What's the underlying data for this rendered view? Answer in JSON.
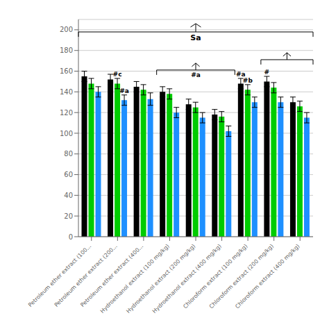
{
  "chart_data": {
    "type": "bar",
    "categories": [
      "Petroleum ether extract (100...",
      "Petroleum ether extract (200...",
      "Petroleum ether extract (400...",
      "Hydroethanol extract (100 mg/kg)",
      "Hydroethanol extract (200 mg/kg)",
      "Hydroethanol extract (400 mg/kg)",
      "Chloroform extract (100 mg/kg)",
      "Chloroform extract (200 mg/kg)",
      "Chloroform extract (400 mg/kg)"
    ],
    "series": [
      {
        "color": "#000000",
        "values": [
          155,
          152,
          145,
          140,
          128,
          118,
          148,
          150,
          130
        ],
        "errors": [
          5,
          5,
          5,
          5,
          5,
          5,
          5,
          5,
          5
        ],
        "annotations": [
          null,
          null,
          null,
          null,
          null,
          null,
          "#a",
          "#",
          null
        ]
      },
      {
        "color": "#00cc00",
        "values": [
          148,
          148,
          142,
          138,
          125,
          116,
          142,
          144,
          126
        ],
        "errors": [
          5,
          5,
          5,
          5,
          5,
          5,
          5,
          5,
          5
        ],
        "annotations": [
          null,
          "#c",
          null,
          null,
          null,
          null,
          "#b",
          null,
          null
        ]
      },
      {
        "color": "#1e90ff",
        "values": [
          140,
          132,
          133,
          120,
          115,
          102,
          130,
          130,
          115
        ],
        "errors": [
          5,
          5,
          6,
          5,
          5,
          5,
          5,
          5,
          5
        ],
        "annotations": [
          null,
          "#a",
          null,
          null,
          null,
          null,
          null,
          null,
          null
        ]
      }
    ],
    "ylim": [
      0,
      210
    ],
    "yticks": [
      0,
      20,
      40,
      60,
      80,
      100,
      120,
      140,
      160,
      180,
      200
    ],
    "grid": true,
    "annotations": [
      {
        "text": "Sa",
        "from": "Petroleum ether extract (100...",
        "to": "Chloroform extract (400 mg/kg)"
      },
      {
        "text": "#a",
        "from": "Hydroethanol extract (100 mg/kg)",
        "to": "Hydroethanol extract (400 mg/kg)"
      },
      {
        "from": "Chloroform extract (200 mg/kg)",
        "to": "Chloroform extract (400 mg/kg)"
      }
    ]
  }
}
